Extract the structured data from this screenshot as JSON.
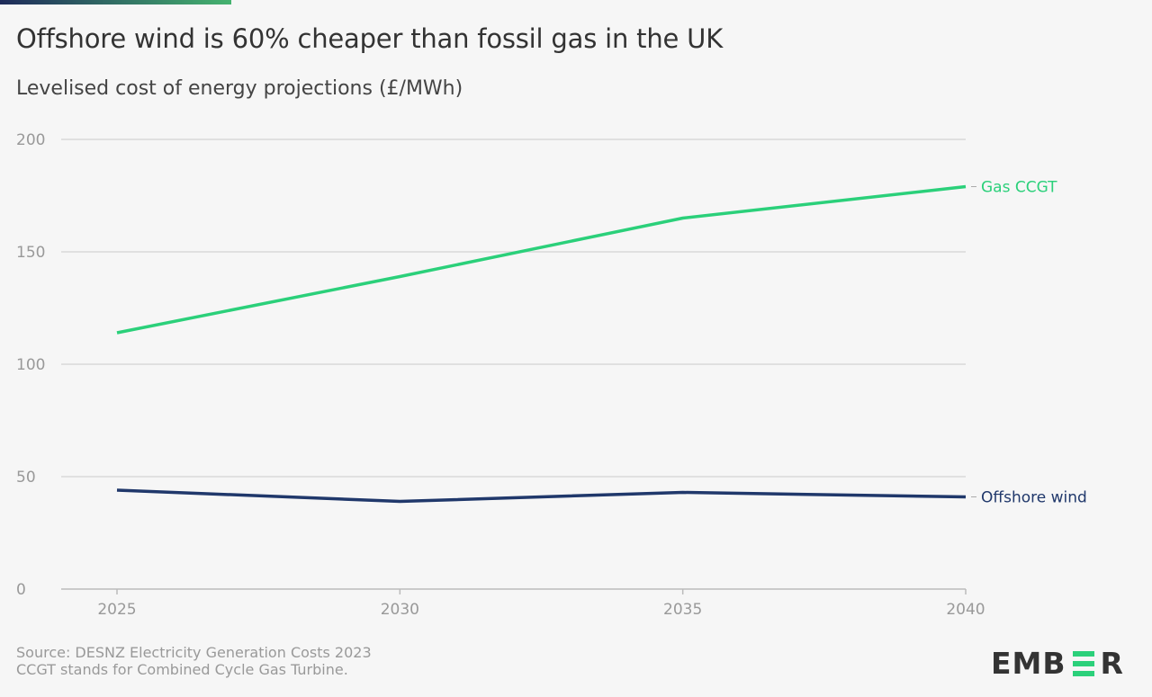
{
  "header": {
    "title": "Offshore wind is 60% cheaper than fossil gas in the UK",
    "subtitle": "Levelised cost of energy projections (£/MWh)"
  },
  "footer": {
    "source": "Source: DESNZ Electricity Generation Costs 2023",
    "note": "CCGT stands for Combined Cycle Gas Turbine.",
    "logo_text": "EMBER"
  },
  "chart_data": {
    "type": "line",
    "title": "Offshore wind is 60% cheaper than fossil gas in the UK",
    "subtitle": "Levelised cost of energy projections (£/MWh)",
    "x": [
      2025,
      2030,
      2035,
      2040
    ],
    "x_ticks": [
      "2025",
      "2030",
      "2035",
      "2040"
    ],
    "y_ticks": [
      "0",
      "50",
      "100",
      "150",
      "200"
    ],
    "ylim": [
      0,
      200
    ],
    "grid": "horizontal",
    "legend": "inline-right",
    "series": [
      {
        "name": "Gas CCGT",
        "color": "#2bd07a",
        "values": [
          114,
          139,
          165,
          179
        ]
      },
      {
        "name": "Offshore wind",
        "color": "#20386b",
        "values": [
          44,
          39,
          43,
          41
        ]
      }
    ]
  }
}
